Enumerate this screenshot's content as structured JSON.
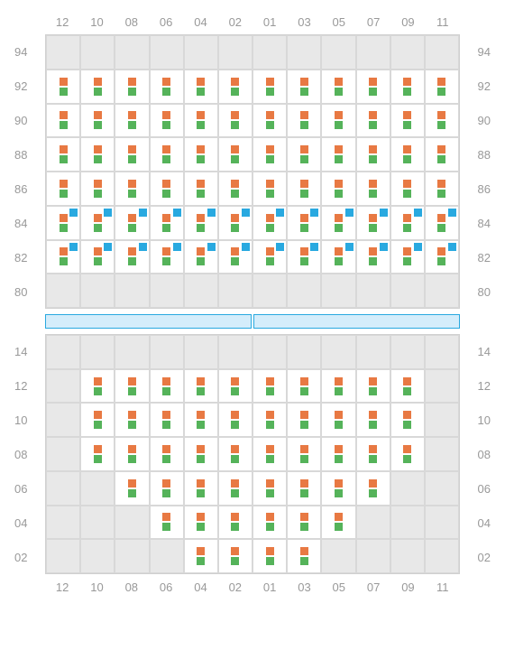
{
  "colors": {
    "orange": "#e87943",
    "green": "#55b35a",
    "blue": "#29a9e0",
    "grid_bg": "#e8e8e8",
    "grid_border": "#d0d0d0",
    "cell_border": "#d8d8d8",
    "filled_bg": "#ffffff",
    "label_color": "#999999",
    "divider_fill": "#d4edfb",
    "divider_border": "#29a9e0"
  },
  "column_labels": [
    "12",
    "10",
    "08",
    "06",
    "04",
    "02",
    "01",
    "03",
    "05",
    "07",
    "09",
    "11"
  ],
  "top_section": {
    "row_labels": [
      "94",
      "92",
      "90",
      "88",
      "86",
      "84",
      "82",
      "80"
    ],
    "rows": [
      {
        "label": "94",
        "cells": [
          {
            "t": "e"
          },
          {
            "t": "e"
          },
          {
            "t": "e"
          },
          {
            "t": "e"
          },
          {
            "t": "e"
          },
          {
            "t": "e"
          },
          {
            "t": "e"
          },
          {
            "t": "e"
          },
          {
            "t": "e"
          },
          {
            "t": "e"
          },
          {
            "t": "e"
          },
          {
            "t": "e"
          }
        ]
      },
      {
        "label": "92",
        "cells": [
          {
            "t": "og"
          },
          {
            "t": "og"
          },
          {
            "t": "og"
          },
          {
            "t": "og"
          },
          {
            "t": "og"
          },
          {
            "t": "og"
          },
          {
            "t": "og"
          },
          {
            "t": "og"
          },
          {
            "t": "og"
          },
          {
            "t": "og"
          },
          {
            "t": "og"
          },
          {
            "t": "og"
          }
        ]
      },
      {
        "label": "90",
        "cells": [
          {
            "t": "og"
          },
          {
            "t": "og"
          },
          {
            "t": "og"
          },
          {
            "t": "og"
          },
          {
            "t": "og"
          },
          {
            "t": "og"
          },
          {
            "t": "og"
          },
          {
            "t": "og"
          },
          {
            "t": "og"
          },
          {
            "t": "og"
          },
          {
            "t": "og"
          },
          {
            "t": "og"
          }
        ]
      },
      {
        "label": "88",
        "cells": [
          {
            "t": "og"
          },
          {
            "t": "og"
          },
          {
            "t": "og"
          },
          {
            "t": "og"
          },
          {
            "t": "og"
          },
          {
            "t": "og"
          },
          {
            "t": "og"
          },
          {
            "t": "og"
          },
          {
            "t": "og"
          },
          {
            "t": "og"
          },
          {
            "t": "og"
          },
          {
            "t": "og"
          }
        ]
      },
      {
        "label": "86",
        "cells": [
          {
            "t": "og"
          },
          {
            "t": "og"
          },
          {
            "t": "og"
          },
          {
            "t": "og"
          },
          {
            "t": "og"
          },
          {
            "t": "og"
          },
          {
            "t": "og"
          },
          {
            "t": "og"
          },
          {
            "t": "og"
          },
          {
            "t": "og"
          },
          {
            "t": "og"
          },
          {
            "t": "og"
          }
        ]
      },
      {
        "label": "84",
        "cells": [
          {
            "t": "ogb"
          },
          {
            "t": "ogb"
          },
          {
            "t": "ogb"
          },
          {
            "t": "ogb"
          },
          {
            "t": "ogb"
          },
          {
            "t": "ogb"
          },
          {
            "t": "ogb"
          },
          {
            "t": "ogb"
          },
          {
            "t": "ogb"
          },
          {
            "t": "ogb"
          },
          {
            "t": "ogb"
          },
          {
            "t": "ogb"
          }
        ]
      },
      {
        "label": "82",
        "cells": [
          {
            "t": "ogb"
          },
          {
            "t": "ogb"
          },
          {
            "t": "ogb"
          },
          {
            "t": "ogb"
          },
          {
            "t": "ogb"
          },
          {
            "t": "ogb"
          },
          {
            "t": "ogb"
          },
          {
            "t": "ogb"
          },
          {
            "t": "ogb"
          },
          {
            "t": "ogb"
          },
          {
            "t": "ogb"
          },
          {
            "t": "ogb"
          }
        ]
      },
      {
        "label": "80",
        "cells": [
          {
            "t": "e"
          },
          {
            "t": "e"
          },
          {
            "t": "e"
          },
          {
            "t": "e"
          },
          {
            "t": "e"
          },
          {
            "t": "e"
          },
          {
            "t": "e"
          },
          {
            "t": "e"
          },
          {
            "t": "e"
          },
          {
            "t": "e"
          },
          {
            "t": "e"
          },
          {
            "t": "e"
          }
        ]
      }
    ]
  },
  "bottom_section": {
    "row_labels": [
      "14",
      "12",
      "10",
      "08",
      "06",
      "04",
      "02"
    ],
    "rows": [
      {
        "label": "14",
        "cells": [
          {
            "t": "e"
          },
          {
            "t": "e"
          },
          {
            "t": "e"
          },
          {
            "t": "e"
          },
          {
            "t": "e"
          },
          {
            "t": "e"
          },
          {
            "t": "e"
          },
          {
            "t": "e"
          },
          {
            "t": "e"
          },
          {
            "t": "e"
          },
          {
            "t": "e"
          },
          {
            "t": "e"
          }
        ]
      },
      {
        "label": "12",
        "cells": [
          {
            "t": "e"
          },
          {
            "t": "og"
          },
          {
            "t": "og"
          },
          {
            "t": "og"
          },
          {
            "t": "og"
          },
          {
            "t": "og"
          },
          {
            "t": "og"
          },
          {
            "t": "og"
          },
          {
            "t": "og"
          },
          {
            "t": "og"
          },
          {
            "t": "og"
          },
          {
            "t": "e"
          }
        ]
      },
      {
        "label": "10",
        "cells": [
          {
            "t": "e"
          },
          {
            "t": "og"
          },
          {
            "t": "og"
          },
          {
            "t": "og"
          },
          {
            "t": "og"
          },
          {
            "t": "og"
          },
          {
            "t": "og"
          },
          {
            "t": "og"
          },
          {
            "t": "og"
          },
          {
            "t": "og"
          },
          {
            "t": "og"
          },
          {
            "t": "e"
          }
        ]
      },
      {
        "label": "08",
        "cells": [
          {
            "t": "e"
          },
          {
            "t": "og"
          },
          {
            "t": "og"
          },
          {
            "t": "og"
          },
          {
            "t": "og"
          },
          {
            "t": "og"
          },
          {
            "t": "og"
          },
          {
            "t": "og"
          },
          {
            "t": "og"
          },
          {
            "t": "og"
          },
          {
            "t": "og"
          },
          {
            "t": "e"
          }
        ]
      },
      {
        "label": "06",
        "cells": [
          {
            "t": "e"
          },
          {
            "t": "e"
          },
          {
            "t": "og"
          },
          {
            "t": "og"
          },
          {
            "t": "og"
          },
          {
            "t": "og"
          },
          {
            "t": "og"
          },
          {
            "t": "og"
          },
          {
            "t": "og"
          },
          {
            "t": "og"
          },
          {
            "t": "e"
          },
          {
            "t": "e"
          }
        ]
      },
      {
        "label": "04",
        "cells": [
          {
            "t": "e"
          },
          {
            "t": "e"
          },
          {
            "t": "e"
          },
          {
            "t": "og"
          },
          {
            "t": "og"
          },
          {
            "t": "og"
          },
          {
            "t": "og"
          },
          {
            "t": "og"
          },
          {
            "t": "og"
          },
          {
            "t": "e"
          },
          {
            "t": "e"
          },
          {
            "t": "e"
          }
        ]
      },
      {
        "label": "02",
        "cells": [
          {
            "t": "e"
          },
          {
            "t": "e"
          },
          {
            "t": "e"
          },
          {
            "t": "e"
          },
          {
            "t": "og"
          },
          {
            "t": "og"
          },
          {
            "t": "og"
          },
          {
            "t": "og"
          },
          {
            "t": "e"
          },
          {
            "t": "e"
          },
          {
            "t": "e"
          },
          {
            "t": "e"
          }
        ]
      }
    ]
  }
}
